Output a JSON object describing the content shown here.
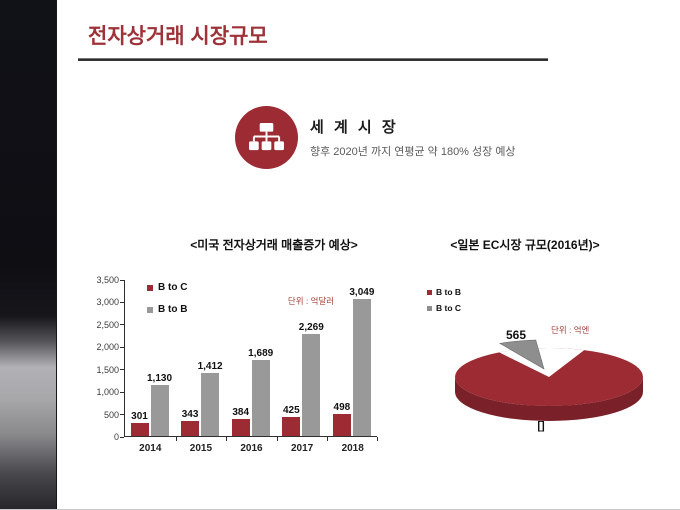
{
  "slide": {
    "title": "전자상거래 시장규모",
    "section": {
      "heading": "세 계 시 장",
      "subtitle": "향후 2020년 까지 연평균 약 180% 성장 예상",
      "icon": "org-chart-icon"
    }
  },
  "colors": {
    "title_red": "#9D3238",
    "accent_red": "#9C2B33",
    "accent_red_dark": "#7A2028",
    "series_gray": "#999999",
    "pie_gray": "#8E8E8E",
    "unit_text": "#A8433B",
    "subtitle_gray": "#5C5C5C"
  },
  "chart_data": [
    {
      "id": "us_ecommerce_bar",
      "type": "bar",
      "title": "<미국 전자상거래 매출증가 예상>",
      "unit_label": "단위 : 억달러",
      "categories": [
        "2014",
        "2015",
        "2016",
        "2017",
        "2018"
      ],
      "series": [
        {
          "name": "B to C",
          "color": "#9C2B33",
          "values": [
            301,
            343,
            384,
            425,
            498
          ]
        },
        {
          "name": "B to B",
          "color": "#999999",
          "values": [
            1130,
            1412,
            1689,
            2269,
            3049
          ]
        }
      ],
      "ylim": [
        0,
        3500
      ],
      "ytick_step": 500,
      "grid": false,
      "legend_position": "inside-top-left",
      "value_labels": true
    },
    {
      "id": "japan_ec_pie",
      "type": "pie",
      "title": "<일본 EC시장 규모(2016년)>",
      "unit_label": "단위 : 억엔",
      "legend": [
        {
          "name": "B to B",
          "color": "#9C2B33"
        },
        {
          "name": "B to C",
          "color": "#8E8E8E"
        }
      ],
      "slices": [
        {
          "name": "B to B",
          "color": "#9C2B33",
          "share_est": 0.94
        },
        {
          "name": "B to C",
          "color": "#8E8E8E",
          "share_est": 0.06,
          "label": "565"
        }
      ],
      "callout_value": "565",
      "bottom_label": "[]",
      "style": "3d pie, B to C slice exploded top-left"
    }
  ]
}
